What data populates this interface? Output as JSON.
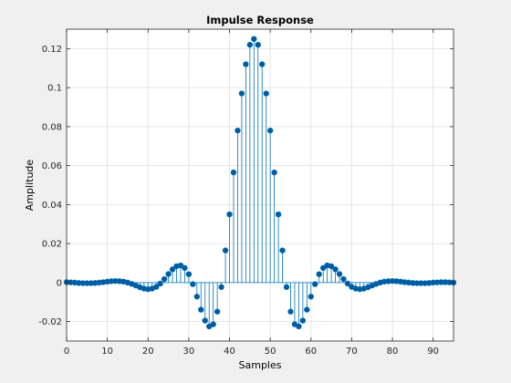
{
  "chart_data": {
    "type": "stem",
    "title": "Impulse Response",
    "xlabel": "Samples",
    "ylabel": "Amplitude",
    "xlim": [
      0,
      95
    ],
    "ylim": [
      -0.03,
      0.13
    ],
    "xticks": [
      0,
      10,
      20,
      30,
      40,
      50,
      60,
      70,
      80,
      90
    ],
    "xtick_labels": [
      "0",
      "10",
      "20",
      "30",
      "40",
      "50",
      "60",
      "70",
      "80",
      "90"
    ],
    "yticks": [
      -0.02,
      0,
      0.02,
      0.04,
      0.06,
      0.08,
      0.1,
      0.12
    ],
    "ytick_labels": [
      "-0.02",
      "0",
      "0.02",
      "0.04",
      "0.06",
      "0.08",
      "0.1",
      "0.12"
    ],
    "grid": true,
    "series": [
      {
        "color": "#0072bd",
        "marker_color": "#005a9e",
        "x": [
          0,
          1,
          2,
          3,
          4,
          5,
          6,
          7,
          8,
          9,
          10,
          11,
          12,
          13,
          14,
          15,
          16,
          17,
          18,
          19,
          20,
          21,
          22,
          23,
          24,
          25,
          26,
          27,
          28,
          29,
          30,
          31,
          32,
          33,
          34,
          35,
          36,
          37,
          38,
          39,
          40,
          41,
          42,
          43,
          44,
          45,
          46,
          47,
          48,
          49,
          50,
          51,
          52,
          53,
          54,
          55,
          56,
          57,
          58,
          59,
          60,
          61,
          62,
          63,
          64,
          65,
          66,
          67,
          68,
          69,
          70,
          71,
          72,
          73,
          74,
          75,
          76,
          77,
          78,
          79,
          80,
          81,
          82,
          83,
          84,
          85,
          86,
          87,
          88,
          89,
          90,
          91,
          92,
          93,
          94,
          95
        ],
        "values": [
          0.0002,
          0.0001,
          0,
          -0.0002,
          -0.0003,
          -0.0003,
          -0.0003,
          -0.0002,
          0,
          0.0002,
          0.0005,
          0.0007,
          0.0008,
          0.0007,
          0.0005,
          0,
          -0.0007,
          -0.0015,
          -0.0024,
          -0.0031,
          -0.0034,
          -0.0031,
          -0.0022,
          -0.0005,
          0.0018,
          0.0044,
          0.0068,
          0.0084,
          0.0088,
          0.0075,
          0.0043,
          -0.0008,
          -0.0072,
          -0.0139,
          -0.0195,
          -0.0225,
          -0.0214,
          -0.0149,
          -0.0023,
          0.0165,
          0.035,
          0.0565,
          0.078,
          0.097,
          0.112,
          0.122,
          0.125,
          0.122,
          0.112,
          0.097,
          0.078,
          0.0565,
          0.035,
          0.0165,
          -0.0023,
          -0.0149,
          -0.0214,
          -0.0225,
          -0.0195,
          -0.0139,
          -0.0072,
          -0.0008,
          0.0043,
          0.0075,
          0.0088,
          0.0084,
          0.0068,
          0.0044,
          0.0018,
          -0.0005,
          -0.0022,
          -0.0031,
          -0.0034,
          -0.0031,
          -0.0024,
          -0.0015,
          -0.0007,
          0,
          0.0005,
          0.0007,
          0.0008,
          0.0007,
          0.0005,
          0.0002,
          0,
          -0.0002,
          -0.0003,
          -0.0003,
          -0.0003,
          -0.0002,
          0,
          0.0001,
          0.0002,
          0.0002,
          0.0001,
          0
        ]
      }
    ]
  }
}
